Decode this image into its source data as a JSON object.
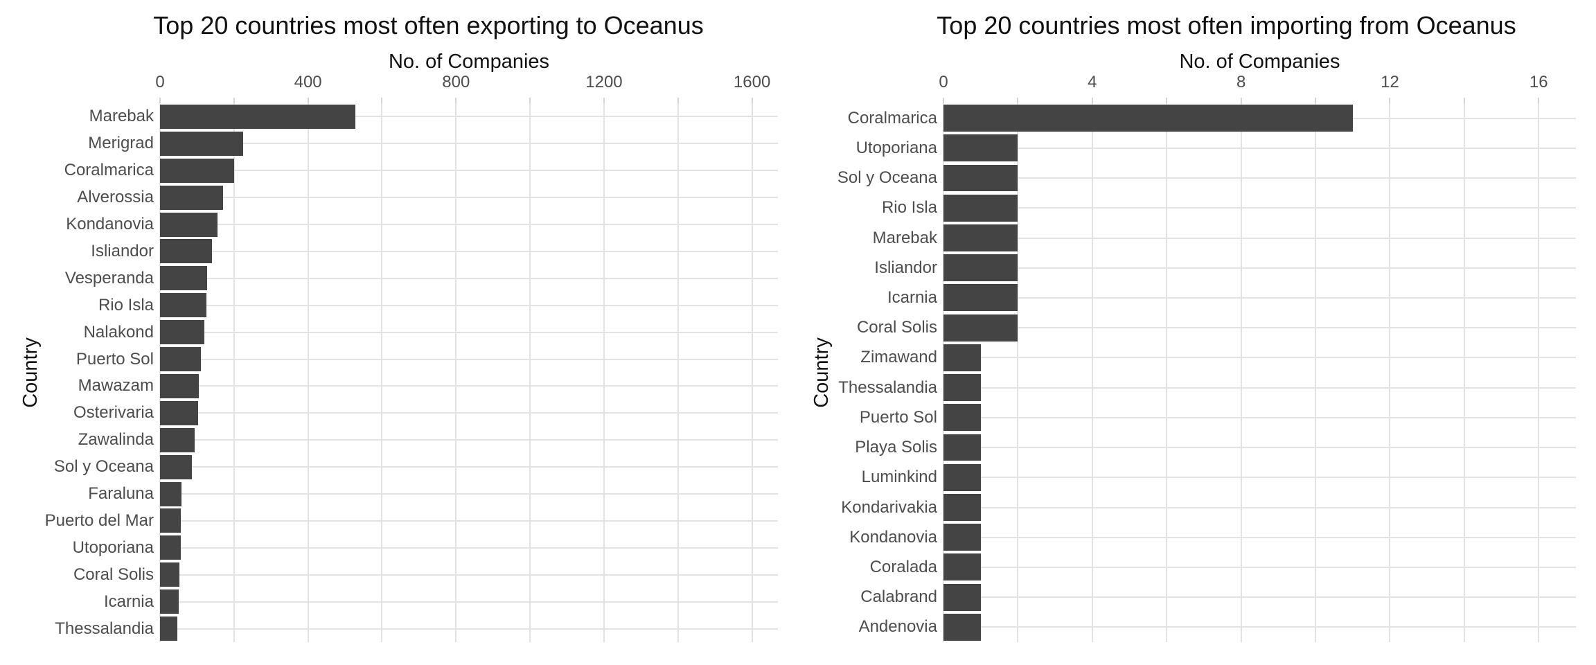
{
  "figure": {
    "background": "#ffffff",
    "bar_color": "#444444",
    "grid_color": "#e3e3e3",
    "tick_color": "#d4d4d4",
    "text_color": "#4d4d4d",
    "title_color": "#111111"
  },
  "chart_data": [
    {
      "type": "bar",
      "orientation": "horizontal",
      "title": "Top 20 countries most often exporting to Oceanus",
      "xlabel": "No. of Companies",
      "ylabel": "Country",
      "xlim": [
        0,
        1670
      ],
      "grid": true,
      "legend": false,
      "x_ticks": [
        {
          "label": "0",
          "v": 0
        },
        {
          "label": "",
          "v": 200
        },
        {
          "label": "400",
          "v": 400
        },
        {
          "label": "",
          "v": 600
        },
        {
          "label": "800",
          "v": 800
        },
        {
          "label": "",
          "v": 1000
        },
        {
          "label": "1200",
          "v": 1200
        },
        {
          "label": "",
          "v": 1400
        },
        {
          "label": "1600",
          "v": 1600
        }
      ],
      "categories": [
        "Marebak",
        "Merigrad",
        "Coralmarica",
        "Alverossia",
        "Kondanovia",
        "Isliandor",
        "Vesperanda",
        "Rio Isla",
        "Nalakond",
        "Puerto Sol",
        "Mawazam",
        "Osterivaria",
        "Zawalinda",
        "Sol y Oceana",
        "Faraluna",
        "Puerto del Mar",
        "Utoporiana",
        "Coral Solis",
        "Icarnia",
        "Thessalandia"
      ],
      "values": [
        528,
        224,
        200,
        170,
        155,
        140,
        127,
        125,
        120,
        111,
        104,
        103,
        94,
        86,
        58,
        57,
        56,
        52,
        50,
        47
      ]
    },
    {
      "type": "bar",
      "orientation": "horizontal",
      "title": "Top 20 countries most often importing from Oceanus",
      "xlabel": "No. of Companies",
      "ylabel": "Country",
      "xlim": [
        0,
        17
      ],
      "grid": true,
      "legend": false,
      "x_ticks": [
        {
          "label": "0",
          "v": 0
        },
        {
          "label": "",
          "v": 2
        },
        {
          "label": "4",
          "v": 4
        },
        {
          "label": "",
          "v": 6
        },
        {
          "label": "8",
          "v": 8
        },
        {
          "label": "",
          "v": 10
        },
        {
          "label": "12",
          "v": 12
        },
        {
          "label": "",
          "v": 14
        },
        {
          "label": "16",
          "v": 16
        }
      ],
      "categories": [
        "Coralmarica",
        "Utoporiana",
        "Sol y Oceana",
        "Rio Isla",
        "Marebak",
        "Isliandor",
        "Icarnia",
        "Coral Solis",
        "Zimawand",
        "Thessalandia",
        "Puerto Sol",
        "Playa Solis",
        "Luminkind",
        "Kondarivakia",
        "Kondanovia",
        "Coralada",
        "Calabrand",
        "Andenovia"
      ],
      "values": [
        11,
        2,
        2,
        2,
        2,
        2,
        2,
        2,
        1,
        1,
        1,
        1,
        1,
        1,
        1,
        1,
        1,
        1
      ]
    }
  ]
}
